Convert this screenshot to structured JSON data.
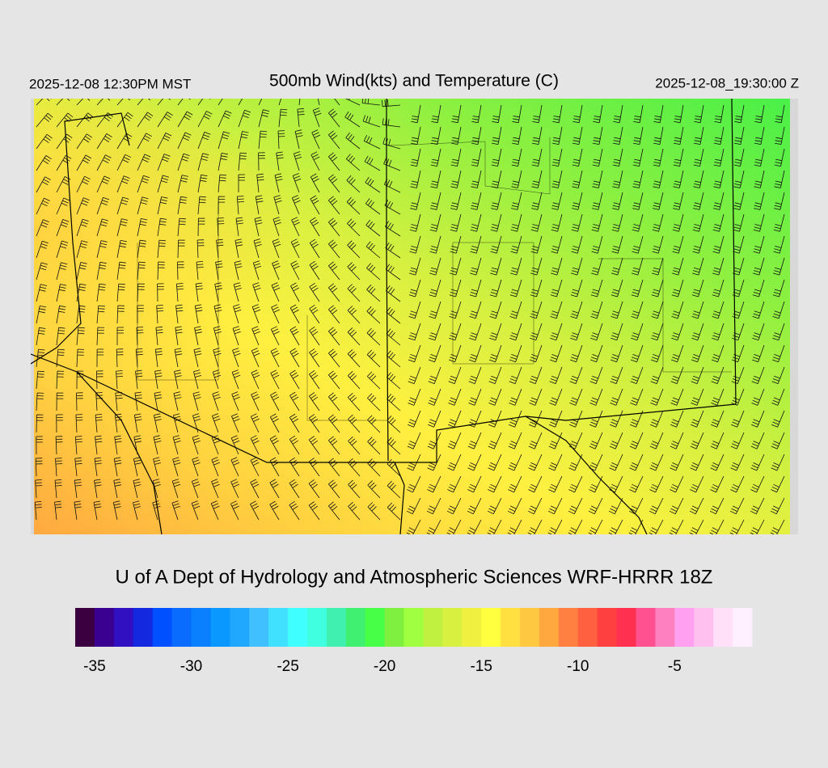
{
  "header": {
    "left": "2025-12-08 12:30PM MST",
    "title": "500mb Wind(kts) and Temperature (C)",
    "right": "2025-12-08_19:30:00 Z"
  },
  "footer": {
    "title": "U of A Dept of Hydrology and Atmospheric Sciences WRF-HRRR 18Z"
  },
  "colorbar": {
    "min": -36,
    "max": -1,
    "colors": [
      "#3a0040",
      "#3a0090",
      "#3010c0",
      "#1428e0",
      "#0050ff",
      "#0a6cff",
      "#0a80ff",
      "#0a98ff",
      "#20a8ff",
      "#40c0ff",
      "#40e0ff",
      "#40ffff",
      "#40ffe0",
      "#40f0b0",
      "#40f070",
      "#48ff48",
      "#80f040",
      "#a0ff40",
      "#c0f040",
      "#d8f040",
      "#f0f040",
      "#ffff40",
      "#ffe040",
      "#ffc840",
      "#ffa840",
      "#ff8040",
      "#ff6040",
      "#ff4040",
      "#ff3050",
      "#ff5090",
      "#ff80c0",
      "#ffa0f0",
      "#ffc0f0",
      "#ffe0f8",
      "#fff0ff"
    ],
    "ticks": [
      -35,
      -30,
      -25,
      -20,
      -15,
      -10,
      -5
    ]
  }
}
